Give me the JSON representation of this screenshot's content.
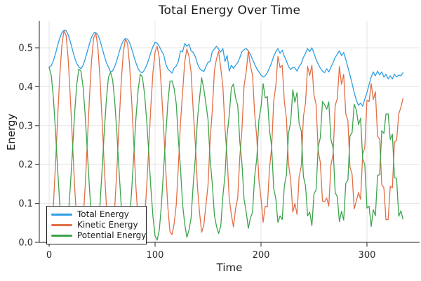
{
  "chart_data": {
    "type": "line",
    "title": "Total Energy Over Time",
    "xlabel": "Time",
    "ylabel": "Energy",
    "xlim": [
      -9.3,
      349.7
    ],
    "ylim": [
      0,
      0.5686
    ],
    "grid": true,
    "legend_position": "bottom-left",
    "xticks": {
      "values": [
        0,
        100,
        200,
        300
      ],
      "labels": [
        "0",
        "100",
        "200",
        "300"
      ]
    },
    "yticks": {
      "values": [
        0.0,
        0.1,
        0.2,
        0.3,
        0.4,
        0.5
      ],
      "labels": [
        "0.0",
        "0.1",
        "0.2",
        "0.3",
        "0.4",
        "0.5"
      ]
    },
    "colors": {
      "grid": "#e5e5e5",
      "axis": "#4a4a4a",
      "tick_text": "#2b2b2b"
    },
    "time": [
      0,
      2,
      4,
      6,
      8,
      10,
      12,
      14,
      16,
      18,
      20,
      22,
      24,
      26,
      28,
      30,
      32,
      34,
      36,
      38,
      40,
      42,
      44,
      46,
      48,
      50,
      52,
      54,
      56,
      58,
      60,
      62,
      64,
      66,
      68,
      70,
      72,
      74,
      76,
      78,
      80,
      82,
      84,
      86,
      88,
      90,
      92,
      94,
      96,
      98,
      100,
      102,
      104,
      106,
      108,
      110,
      112,
      114,
      116,
      118,
      120,
      122,
      124,
      126,
      128,
      130,
      132,
      134,
      136,
      138,
      140,
      142,
      144,
      146,
      148,
      150,
      152,
      154,
      156,
      158,
      160,
      162,
      164,
      166,
      168,
      170,
      172,
      174,
      176,
      178,
      180,
      182,
      184,
      186,
      188,
      190,
      192,
      194,
      196,
      198,
      200,
      202,
      204,
      206,
      208,
      210,
      212,
      214,
      216,
      218,
      220,
      222,
      224,
      226,
      228,
      230,
      232,
      234,
      236,
      238,
      240,
      242,
      244,
      246,
      248,
      250,
      252,
      254,
      256,
      258,
      260,
      262,
      264,
      266,
      268,
      270,
      272,
      274,
      276,
      278,
      280,
      282,
      284,
      286,
      288,
      290,
      292,
      294,
      296,
      298,
      300,
      302,
      304,
      306,
      308,
      310,
      312,
      314,
      316,
      318,
      320,
      322,
      324,
      326,
      328,
      330,
      332,
      334
    ],
    "series": [
      {
        "name": "Total Energy",
        "color": "#2e9fe6",
        "values": [
          0.45,
          0.454,
          0.467,
          0.485,
          0.506,
          0.525,
          0.539,
          0.545,
          0.544,
          0.533,
          0.516,
          0.495,
          0.475,
          0.46,
          0.451,
          0.446,
          0.455,
          0.471,
          0.49,
          0.51,
          0.527,
          0.538,
          0.539,
          0.533,
          0.519,
          0.5,
          0.48,
          0.462,
          0.45,
          0.438,
          0.441,
          0.452,
          0.469,
          0.488,
          0.506,
          0.518,
          0.524,
          0.522,
          0.513,
          0.497,
          0.478,
          0.461,
          0.446,
          0.438,
          0.436,
          0.443,
          0.455,
          0.47,
          0.488,
          0.503,
          0.514,
          0.512,
          0.503,
          0.492,
          0.483,
          0.459,
          0.446,
          0.44,
          0.435,
          0.448,
          0.453,
          0.465,
          0.492,
          0.49,
          0.511,
          0.504,
          0.509,
          0.492,
          0.488,
          0.477,
          0.459,
          0.447,
          0.442,
          0.439,
          0.452,
          0.463,
          0.465,
          0.49,
          0.497,
          0.504,
          0.496,
          0.489,
          0.498,
          0.465,
          0.48,
          0.44,
          0.455,
          0.447,
          0.455,
          0.462,
          0.475,
          0.49,
          0.495,
          0.498,
          0.492,
          0.483,
          0.47,
          0.458,
          0.446,
          0.438,
          0.43,
          0.425,
          0.428,
          0.436,
          0.448,
          0.462,
          0.478,
          0.49,
          0.498,
          0.486,
          0.494,
          0.478,
          0.466,
          0.452,
          0.444,
          0.45,
          0.448,
          0.44,
          0.452,
          0.46,
          0.475,
          0.486,
          0.498,
          0.49,
          0.5,
          0.486,
          0.47,
          0.458,
          0.448,
          0.44,
          0.436,
          0.446,
          0.438,
          0.45,
          0.462,
          0.475,
          0.484,
          0.492,
          0.48,
          0.488,
          0.47,
          0.45,
          0.43,
          0.408,
          0.385,
          0.365,
          0.352,
          0.358,
          0.35,
          0.368,
          0.385,
          0.405,
          0.425,
          0.438,
          0.428,
          0.44,
          0.43,
          0.438,
          0.425,
          0.432,
          0.42,
          0.428,
          0.42,
          0.432,
          0.425,
          0.43,
          0.428,
          0.436
        ]
      },
      {
        "name": "Kinetic Energy",
        "color": "#e26e46",
        "values": [
          0.002,
          0.025,
          0.096,
          0.2,
          0.317,
          0.426,
          0.507,
          0.544,
          0.532,
          0.471,
          0.373,
          0.259,
          0.145,
          0.056,
          0.006,
          0.006,
          0.055,
          0.144,
          0.256,
          0.368,
          0.466,
          0.526,
          0.538,
          0.501,
          0.422,
          0.314,
          0.198,
          0.095,
          0.025,
          0.001,
          0.024,
          0.092,
          0.192,
          0.305,
          0.41,
          0.487,
          0.523,
          0.511,
          0.453,
          0.358,
          0.249,
          0.14,
          0.054,
          0.006,
          0.011,
          0.056,
          0.138,
          0.243,
          0.35,
          0.437,
          0.489,
          0.504,
          0.473,
          0.392,
          0.296,
          0.191,
          0.093,
          0.028,
          0.02,
          0.048,
          0.097,
          0.195,
          0.306,
          0.388,
          0.464,
          0.497,
          0.478,
          0.438,
          0.338,
          0.253,
          0.143,
          0.076,
          0.026,
          0.045,
          0.096,
          0.148,
          0.263,
          0.338,
          0.442,
          0.472,
          0.491,
          0.448,
          0.402,
          0.292,
          0.217,
          0.113,
          0.071,
          0.04,
          0.087,
          0.115,
          0.221,
          0.289,
          0.402,
          0.439,
          0.492,
          0.454,
          0.43,
          0.331,
          0.269,
          0.159,
          0.113,
          0.052,
          0.093,
          0.091,
          0.191,
          0.242,
          0.363,
          0.403,
          0.478,
          0.449,
          0.455,
          0.362,
          0.319,
          0.201,
          0.16,
          0.078,
          0.1,
          0.072,
          0.168,
          0.197,
          0.323,
          0.358,
          0.452,
          0.429,
          0.455,
          0.379,
          0.354,
          0.236,
          0.205,
          0.106,
          0.105,
          0.114,
          0.093,
          0.198,
          0.226,
          0.352,
          0.369,
          0.452,
          0.406,
          0.432,
          0.33,
          0.313,
          0.193,
          0.175,
          0.086,
          0.107,
          0.128,
          0.111,
          0.227,
          0.243,
          0.365,
          0.362,
          0.408,
          0.367,
          0.387,
          0.273,
          0.265,
          0.148,
          0.14,
          0.058,
          0.059,
          0.144,
          0.14,
          0.258,
          0.262,
          0.33,
          0.347,
          0.37
        ]
      },
      {
        "name": "Potential Energy",
        "color": "#3da44d",
        "values": [
          0.45,
          0.429,
          0.371,
          0.285,
          0.189,
          0.099,
          0.032,
          0.001,
          0.012,
          0.062,
          0.143,
          0.236,
          0.33,
          0.404,
          0.445,
          0.44,
          0.4,
          0.327,
          0.234,
          0.142,
          0.061,
          0.012,
          0.001,
          0.032,
          0.097,
          0.186,
          0.282,
          0.367,
          0.425,
          0.437,
          0.417,
          0.36,
          0.277,
          0.183,
          0.096,
          0.031,
          0.001,
          0.011,
          0.06,
          0.139,
          0.229,
          0.321,
          0.392,
          0.432,
          0.425,
          0.383,
          0.317,
          0.232,
          0.14,
          0.066,
          0.016,
          0.006,
          0.033,
          0.098,
          0.187,
          0.27,
          0.355,
          0.414,
          0.415,
          0.395,
          0.356,
          0.265,
          0.191,
          0.096,
          0.047,
          0.013,
          0.031,
          0.062,
          0.15,
          0.218,
          0.316,
          0.371,
          0.423,
          0.394,
          0.356,
          0.315,
          0.212,
          0.152,
          0.069,
          0.041,
          0.023,
          0.041,
          0.118,
          0.173,
          0.277,
          0.327,
          0.397,
          0.407,
          0.371,
          0.352,
          0.258,
          0.204,
          0.111,
          0.078,
          0.036,
          0.063,
          0.077,
          0.169,
          0.216,
          0.314,
          0.348,
          0.408,
          0.371,
          0.375,
          0.288,
          0.247,
          0.138,
          0.112,
          0.051,
          0.068,
          0.059,
          0.144,
          0.174,
          0.28,
          0.31,
          0.392,
          0.36,
          0.385,
          0.305,
          0.286,
          0.169,
          0.146,
          0.068,
          0.078,
          0.043,
          0.125,
          0.135,
          0.246,
          0.269,
          0.362,
          0.354,
          0.342,
          0.361,
          0.265,
          0.243,
          0.128,
          0.117,
          0.053,
          0.08,
          0.057,
          0.151,
          0.16,
          0.274,
          0.282,
          0.355,
          0.34,
          0.302,
          0.319,
          0.214,
          0.2,
          0.088,
          0.093,
          0.041,
          0.084,
          0.068,
          0.172,
          0.174,
          0.287,
          0.28,
          0.33,
          0.33,
          0.264,
          0.278,
          0.167,
          0.164,
          0.067,
          0.081,
          0.06
        ]
      }
    ]
  }
}
